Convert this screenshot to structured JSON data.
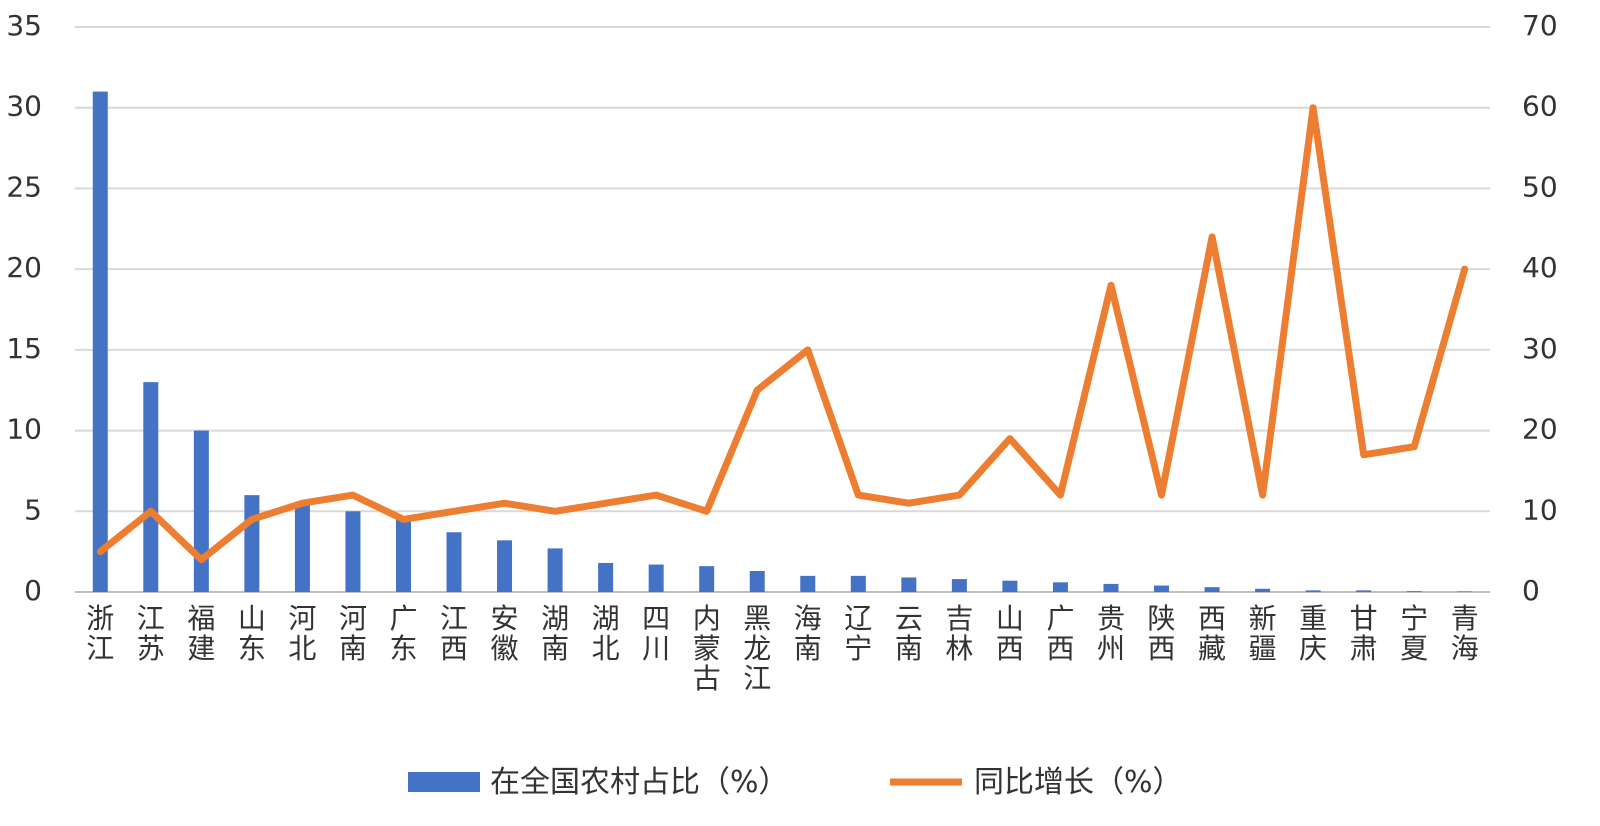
{
  "chart_data": {
    "type": "bar",
    "categories": [
      "浙江",
      "江苏",
      "福建",
      "山东",
      "河北",
      "河南",
      "广东",
      "江西",
      "安徽",
      "湖南",
      "湖北",
      "四川",
      "内蒙古",
      "黑龙江",
      "海南",
      "辽宁",
      "云南",
      "吉林",
      "山西",
      "广西",
      "贵州",
      "陕西",
      "西藏",
      "新疆",
      "重庆",
      "甘肃",
      "宁夏",
      "青海"
    ],
    "series": [
      {
        "name": "在全国农村占比（%）",
        "type": "bar",
        "axis": "left",
        "color": "#4472C4",
        "values": [
          31,
          13,
          10,
          6,
          5.5,
          5,
          4.6,
          3.7,
          3.2,
          2.7,
          1.8,
          1.7,
          1.6,
          1.3,
          1.0,
          1.0,
          0.9,
          0.8,
          0.7,
          0.6,
          0.5,
          0.4,
          0.3,
          0.2,
          0.1,
          0.1,
          0.05,
          0.03
        ]
      },
      {
        "name": "同比增长（%）",
        "type": "line",
        "axis": "right",
        "color": "#ED7D31",
        "values": [
          5,
          10,
          4,
          9,
          11,
          12,
          9,
          10,
          11,
          10,
          11,
          12,
          10,
          25,
          30,
          12,
          11,
          12,
          19,
          12,
          38,
          12,
          44,
          12,
          60,
          17,
          18,
          40
        ]
      }
    ],
    "y_left": {
      "min": 0,
      "max": 35,
      "ticks": [
        "0",
        "5",
        "10",
        "15",
        "20",
        "25",
        "30",
        "35"
      ]
    },
    "y_right": {
      "min": 0,
      "max": 70,
      "ticks": [
        "0",
        "10",
        "20",
        "30",
        "40",
        "50",
        "60",
        "70"
      ]
    },
    "grid": true,
    "legend": "bottom"
  }
}
